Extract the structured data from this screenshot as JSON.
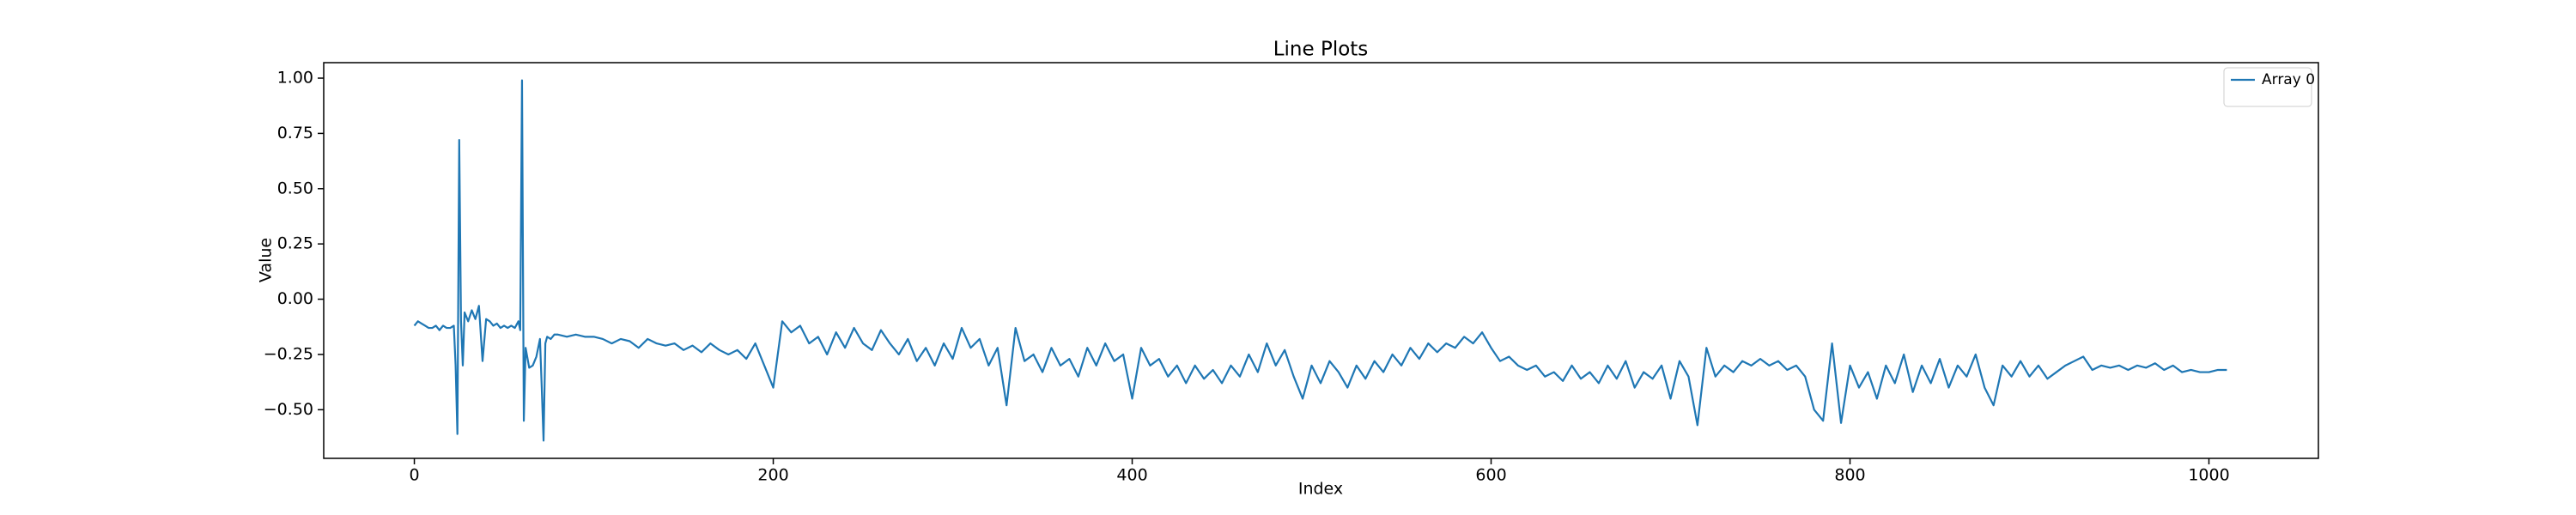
{
  "chart_data": {
    "type": "line",
    "title": "Line Plots",
    "xlabel": "Index",
    "ylabel": "Value",
    "x": [
      0,
      2,
      4,
      6,
      8,
      10,
      12,
      14,
      16,
      18,
      20,
      22,
      23,
      24,
      25,
      26,
      27,
      28,
      30,
      32,
      34,
      36,
      38,
      40,
      42,
      44,
      46,
      48,
      50,
      52,
      54,
      56,
      58,
      59,
      60,
      61,
      62,
      64,
      66,
      68,
      70,
      71,
      72,
      73,
      74,
      76,
      78,
      80,
      85,
      90,
      95,
      100,
      105,
      110,
      115,
      120,
      125,
      130,
      135,
      140,
      145,
      150,
      155,
      160,
      165,
      170,
      175,
      180,
      185,
      190,
      195,
      200,
      205,
      210,
      215,
      220,
      225,
      230,
      235,
      240,
      245,
      250,
      255,
      260,
      265,
      270,
      275,
      280,
      285,
      290,
      295,
      300,
      305,
      310,
      315,
      320,
      325,
      330,
      335,
      340,
      345,
      350,
      355,
      360,
      365,
      370,
      375,
      380,
      385,
      390,
      395,
      400,
      405,
      410,
      415,
      420,
      425,
      430,
      435,
      440,
      445,
      450,
      455,
      460,
      465,
      470,
      475,
      480,
      485,
      490,
      495,
      500,
      505,
      510,
      515,
      520,
      525,
      530,
      535,
      540,
      545,
      550,
      555,
      560,
      565,
      570,
      575,
      580,
      585,
      590,
      595,
      600,
      605,
      610,
      615,
      620,
      625,
      630,
      635,
      640,
      645,
      650,
      655,
      660,
      665,
      670,
      675,
      680,
      685,
      690,
      695,
      700,
      705,
      710,
      715,
      720,
      725,
      730,
      735,
      740,
      745,
      750,
      755,
      760,
      765,
      770,
      775,
      780,
      785,
      790,
      795,
      800,
      805,
      810,
      815,
      820,
      825,
      830,
      835,
      840,
      845,
      850,
      855,
      860,
      865,
      870,
      875,
      880,
      885,
      890,
      895,
      900,
      905,
      910,
      915,
      920,
      925,
      930,
      935,
      940,
      945,
      950,
      955,
      960,
      965,
      970,
      975,
      980,
      985,
      990,
      995,
      1000,
      1005,
      1010
    ],
    "series": [
      {
        "name": "Array 0",
        "color": "#1f77b4",
        "values": [
          -0.12,
          -0.1,
          -0.11,
          -0.12,
          -0.13,
          -0.13,
          -0.12,
          -0.14,
          -0.12,
          -0.13,
          -0.13,
          -0.12,
          -0.3,
          -0.61,
          0.72,
          -0.1,
          -0.3,
          -0.06,
          -0.1,
          -0.05,
          -0.09,
          -0.03,
          -0.28,
          -0.09,
          -0.1,
          -0.12,
          -0.11,
          -0.13,
          -0.12,
          -0.13,
          -0.12,
          -0.13,
          -0.1,
          -0.14,
          0.99,
          -0.55,
          -0.22,
          -0.31,
          -0.3,
          -0.26,
          -0.18,
          -0.4,
          -0.64,
          -0.2,
          -0.17,
          -0.18,
          -0.16,
          -0.16,
          -0.17,
          -0.16,
          -0.17,
          -0.17,
          -0.18,
          -0.2,
          -0.18,
          -0.19,
          -0.22,
          -0.18,
          -0.2,
          -0.21,
          -0.2,
          -0.23,
          -0.21,
          -0.24,
          -0.2,
          -0.23,
          -0.25,
          -0.23,
          -0.27,
          -0.2,
          -0.3,
          -0.4,
          -0.1,
          -0.15,
          -0.12,
          -0.2,
          -0.17,
          -0.25,
          -0.15,
          -0.22,
          -0.13,
          -0.2,
          -0.23,
          -0.14,
          -0.2,
          -0.25,
          -0.18,
          -0.28,
          -0.22,
          -0.3,
          -0.2,
          -0.27,
          -0.13,
          -0.22,
          -0.18,
          -0.3,
          -0.22,
          -0.48,
          -0.13,
          -0.28,
          -0.25,
          -0.33,
          -0.22,
          -0.3,
          -0.27,
          -0.35,
          -0.22,
          -0.3,
          -0.2,
          -0.28,
          -0.25,
          -0.45,
          -0.22,
          -0.3,
          -0.27,
          -0.35,
          -0.3,
          -0.38,
          -0.3,
          -0.36,
          -0.32,
          -0.38,
          -0.3,
          -0.35,
          -0.25,
          -0.33,
          -0.2,
          -0.3,
          -0.23,
          -0.35,
          -0.45,
          -0.3,
          -0.38,
          -0.28,
          -0.33,
          -0.4,
          -0.3,
          -0.36,
          -0.28,
          -0.33,
          -0.25,
          -0.3,
          -0.22,
          -0.27,
          -0.2,
          -0.24,
          -0.2,
          -0.22,
          -0.17,
          -0.2,
          -0.15,
          -0.22,
          -0.28,
          -0.26,
          -0.3,
          -0.32,
          -0.3,
          -0.35,
          -0.33,
          -0.37,
          -0.3,
          -0.36,
          -0.33,
          -0.38,
          -0.3,
          -0.36,
          -0.28,
          -0.4,
          -0.33,
          -0.36,
          -0.3,
          -0.45,
          -0.28,
          -0.35,
          -0.57,
          -0.22,
          -0.35,
          -0.3,
          -0.33,
          -0.28,
          -0.3,
          -0.27,
          -0.3,
          -0.28,
          -0.32,
          -0.3,
          -0.35,
          -0.5,
          -0.55,
          -0.2,
          -0.56,
          -0.3,
          -0.4,
          -0.33,
          -0.45,
          -0.3,
          -0.38,
          -0.25,
          -0.42,
          -0.3,
          -0.38,
          -0.27,
          -0.4,
          -0.3,
          -0.35,
          -0.25,
          -0.4,
          -0.48,
          -0.3,
          -0.35,
          -0.28,
          -0.35,
          -0.3,
          -0.36,
          -0.33,
          -0.3,
          -0.28,
          -0.26,
          -0.32,
          -0.3,
          -0.31,
          -0.3,
          -0.32,
          -0.3,
          -0.31,
          -0.29,
          -0.32,
          -0.3,
          -0.33,
          -0.32,
          -0.33,
          -0.33,
          -0.32,
          -0.32
        ]
      }
    ],
    "xlim": [
      -50.5,
      1061
    ],
    "ylim": [
      -0.72,
      1.07
    ],
    "xticks": [
      0,
      200,
      400,
      600,
      800,
      1000
    ],
    "yticks": [
      {
        "value": -0.5,
        "label": "−0.50"
      },
      {
        "value": -0.25,
        "label": "−0.25"
      },
      {
        "value": 0,
        "label": "0.00"
      },
      {
        "value": 0.25,
        "label": "0.25"
      },
      {
        "value": 0.5,
        "label": "0.50"
      },
      {
        "value": 0.75,
        "label": "0.75"
      },
      {
        "value": 1,
        "label": "1.00"
      }
    ],
    "legend": "upper right"
  }
}
